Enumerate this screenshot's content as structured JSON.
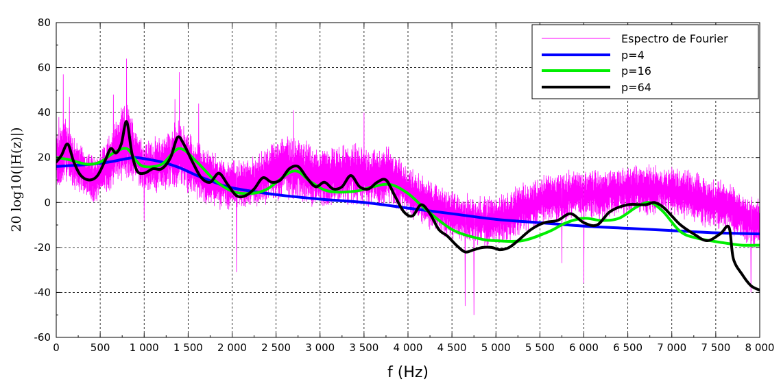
{
  "chart_data": {
    "type": "line",
    "title": "",
    "xlabel": "f (Hz)",
    "ylabel": "20 log10(|H(z)|)",
    "xlim": [
      0,
      8000
    ],
    "ylim": [
      -60,
      80
    ],
    "grid": true,
    "legend_position": "top-right",
    "x_ticks": [
      0,
      500,
      1000,
      1500,
      2000,
      2500,
      3000,
      3500,
      4000,
      4500,
      5000,
      5500,
      6000,
      6500,
      7000,
      7500,
      8000
    ],
    "x_tick_labels": [
      "0",
      "500",
      "1 000",
      "1 500",
      "2 000",
      "2 500",
      "3 000",
      "3 500",
      "4 000",
      "4 500",
      "5 000",
      "5 500",
      "6 000",
      "6 500",
      "7 000",
      "7 500",
      "8 000"
    ],
    "y_ticks": [
      -60,
      -40,
      -20,
      0,
      20,
      40,
      60,
      80
    ],
    "y_tick_labels": [
      "-60",
      "-40",
      "-20",
      "0",
      "20",
      "40",
      "60",
      "80"
    ],
    "series": [
      {
        "name": "Espectro de Fourier",
        "color": "#ff00ff",
        "style": "thin-noisy",
        "envelope": {
          "x": [
            0,
            100,
            200,
            300,
            400,
            500,
            600,
            700,
            800,
            900,
            1000,
            1200,
            1400,
            1600,
            1800,
            2000,
            2200,
            2400,
            2600,
            2800,
            3000,
            3200,
            3400,
            3600,
            3800,
            4000,
            4200,
            4400,
            4600,
            4800,
            5000,
            5200,
            5400,
            5600,
            5800,
            6000,
            6200,
            6400,
            6600,
            6800,
            7000,
            7200,
            7400,
            7600,
            7800,
            8000
          ],
          "mean": [
            18,
            24,
            18,
            14,
            10,
            12,
            18,
            24,
            28,
            22,
            16,
            17,
            22,
            14,
            10,
            8,
            8,
            12,
            16,
            14,
            11,
            12,
            13,
            11,
            12,
            5,
            0,
            -4,
            -7,
            -8,
            -8,
            -5,
            -1,
            2,
            3,
            4,
            3,
            5,
            6,
            6,
            5,
            3,
            0,
            -1,
            -6,
            -10
          ],
          "amp": [
            12,
            14,
            12,
            10,
            10,
            10,
            12,
            14,
            16,
            12,
            10,
            12,
            14,
            12,
            11,
            10,
            10,
            12,
            14,
            13,
            12,
            12,
            12,
            12,
            12,
            10,
            10,
            10,
            10,
            10,
            10,
            10,
            10,
            10,
            10,
            10,
            10,
            10,
            10,
            10,
            10,
            10,
            10,
            10,
            10,
            10
          ]
        },
        "peaks": [
          {
            "x": 30,
            "y": 38
          },
          {
            "x": 80,
            "y": 57
          },
          {
            "x": 150,
            "y": 47
          },
          {
            "x": 650,
            "y": 48
          },
          {
            "x": 800,
            "y": 64
          },
          {
            "x": 1400,
            "y": 58
          },
          {
            "x": 1350,
            "y": 46
          },
          {
            "x": 1620,
            "y": 44
          },
          {
            "x": 2700,
            "y": 41
          },
          {
            "x": 3500,
            "y": 40
          },
          {
            "x": 2050,
            "y": -31
          },
          {
            "x": 4750,
            "y": -50
          },
          {
            "x": 4650,
            "y": -46
          },
          {
            "x": 6000,
            "y": -36
          },
          {
            "x": 5750,
            "y": -27
          },
          {
            "x": 7900,
            "y": -40
          },
          {
            "x": 1000,
            "y": -8
          }
        ]
      },
      {
        "name": "p=4",
        "color": "#0000ff",
        "x": [
          0,
          200,
          400,
          600,
          800,
          900,
          1000,
          1200,
          1400,
          1600,
          1800,
          2000,
          2500,
          3000,
          3500,
          4000,
          4500,
          5000,
          5500,
          6000,
          6500,
          7000,
          7500,
          8000
        ],
        "y": [
          16,
          16.5,
          17,
          18,
          19.5,
          20,
          19.5,
          18,
          15.5,
          12,
          9,
          6.5,
          3.5,
          1.5,
          0,
          -2.5,
          -5,
          -7.5,
          -9,
          -10.5,
          -11.5,
          -12.5,
          -13.5,
          -14
        ]
      },
      {
        "name": "p=16",
        "color": "#00ee00",
        "x": [
          0,
          150,
          350,
          500,
          650,
          800,
          900,
          1000,
          1200,
          1400,
          1600,
          1800,
          2000,
          2200,
          2400,
          2700,
          2900,
          3100,
          3400,
          3600,
          3800,
          4000,
          4200,
          4500,
          4800,
          5000,
          5300,
          5600,
          5800,
          6000,
          6200,
          6400,
          6600,
          6750,
          6900,
          7100,
          7300,
          7600,
          7800,
          8000
        ],
        "y": [
          20,
          19,
          17,
          18,
          22,
          24,
          19,
          16,
          17,
          24,
          18,
          10,
          5,
          4,
          6,
          14,
          9,
          5,
          5,
          7,
          8,
          4,
          -3,
          -12,
          -16,
          -17,
          -17,
          -13,
          -9,
          -7,
          -8,
          -7,
          -2,
          0,
          -4,
          -13,
          -16,
          -18,
          -19,
          -19
        ]
      },
      {
        "name": "p=64",
        "color": "#000000",
        "x": [
          0,
          60,
          130,
          200,
          280,
          380,
          470,
          560,
          620,
          680,
          740,
          800,
          860,
          920,
          1000,
          1100,
          1200,
          1300,
          1380,
          1450,
          1550,
          1650,
          1750,
          1850,
          1950,
          2050,
          2150,
          2250,
          2350,
          2450,
          2550,
          2650,
          2750,
          2850,
          2950,
          3050,
          3150,
          3250,
          3350,
          3450,
          3550,
          3650,
          3750,
          3850,
          3950,
          4050,
          4150,
          4250,
          4350,
          4450,
          4550,
          4650,
          4750,
          4850,
          4950,
          5050,
          5150,
          5250,
          5400,
          5550,
          5700,
          5850,
          6000,
          6150,
          6300,
          6500,
          6700,
          6800,
          6900,
          7000,
          7100,
          7250,
          7400,
          7550,
          7650,
          7700,
          7800,
          7900,
          8000
        ],
        "y": [
          18,
          21,
          26,
          18,
          12,
          10,
          12,
          19,
          24,
          22,
          26,
          36,
          22,
          14,
          13,
          15,
          15,
          20,
          29,
          26,
          18,
          11,
          9,
          13,
          8,
          3,
          3,
          6,
          11,
          9,
          10,
          15,
          16,
          11,
          7,
          9,
          6,
          7,
          12,
          7,
          6,
          9,
          10,
          3,
          -4,
          -6,
          -1,
          -5,
          -12,
          -15,
          -19,
          -22,
          -21,
          -20,
          -20,
          -21,
          -20,
          -17,
          -12,
          -9,
          -8,
          -5,
          -9,
          -10,
          -4,
          -1,
          -1,
          0,
          -2,
          -6,
          -10,
          -14,
          -17,
          -14,
          -11,
          -25,
          -32,
          -37,
          -39
        ]
      }
    ]
  }
}
